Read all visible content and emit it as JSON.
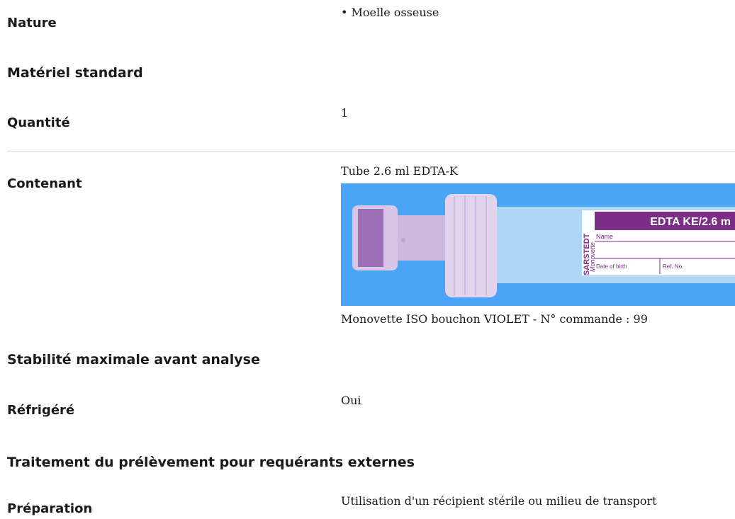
{
  "sections": [
    {
      "label": "Nature",
      "items": [
        "Moelle osseuse"
      ]
    },
    {
      "heading": "Matériel standard"
    },
    {
      "label": "Quantité",
      "value": "1"
    },
    {
      "label": "Contenant",
      "value": "Tube 2.6 ml EDTA-K",
      "image": {
        "brand": "SARSTEDT",
        "product": "Monovette",
        "header": "EDTA KE/2.6 m",
        "fields": [
          "Name",
          "Date of birth",
          "Ref. No."
        ]
      },
      "caption": "Monovette ISO bouchon VIOLET - N° commande : 99"
    },
    {
      "heading": "Stabilité maximale avant analyse"
    },
    {
      "label": "Réfrigéré",
      "value": "Oui"
    },
    {
      "heading": "Traitement du prélèvement pour requérants externes"
    },
    {
      "label": "Préparation",
      "value": "Utilisation d'un récipient stérile ou milieu de transport"
    }
  ]
}
